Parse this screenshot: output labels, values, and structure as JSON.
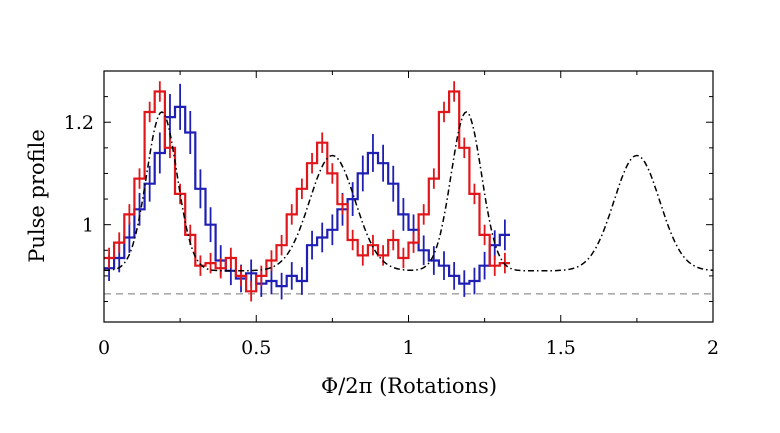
{
  "chart_data": {
    "type": "line",
    "title": "",
    "xlabel": "Φ/2π (Rotations)",
    "ylabel": "Pulse profile",
    "xlim": [
      0,
      2
    ],
    "ylim": [
      0.81,
      1.3
    ],
    "grid": false,
    "legend": "none",
    "x_ticks": [
      {
        "value": 0,
        "label": "0"
      },
      {
        "value": 0.5,
        "label": "0.5"
      },
      {
        "value": 1,
        "label": "1"
      },
      {
        "value": 1.5,
        "label": "1.5"
      },
      {
        "value": 2,
        "label": "2"
      }
    ],
    "y_ticks": [
      {
        "value": 1.0,
        "label": "1"
      },
      {
        "value": 1.2,
        "label": "1.2"
      }
    ],
    "reference_level": 0.865,
    "bin_width": 0.03333,
    "series": [
      {
        "color": "#1f1fb4",
        "style": "step-with-errorbars",
        "values": [
          0.915,
          0.935,
          0.975,
          1.03,
          1.08,
          1.14,
          1.21,
          1.23,
          1.18,
          1.07,
          1.0,
          0.93,
          0.91,
          0.895,
          0.905,
          0.885,
          0.89,
          0.88,
          0.9,
          0.89,
          0.96,
          0.975,
          0.99,
          1.03,
          1.05,
          1.1,
          1.14,
          1.12,
          1.08,
          1.02,
          0.99,
          0.95,
          0.93,
          0.92,
          0.9,
          0.885,
          0.89,
          0.92,
          0.96,
          0.98
        ],
        "errors": [
          0.025,
          0.028,
          0.03,
          0.032,
          0.035,
          0.04,
          0.045,
          0.045,
          0.042,
          0.038,
          0.034,
          0.03,
          0.028,
          0.027,
          0.027,
          0.026,
          0.026,
          0.026,
          0.027,
          0.027,
          0.028,
          0.029,
          0.03,
          0.032,
          0.033,
          0.035,
          0.037,
          0.036,
          0.035,
          0.032,
          0.03,
          0.029,
          0.028,
          0.028,
          0.027,
          0.026,
          0.026,
          0.027,
          0.029,
          0.03
        ]
      },
      {
        "color": "#e0161b",
        "style": "step-with-errorbars",
        "values": [
          0.935,
          0.965,
          1.02,
          1.09,
          1.22,
          1.26,
          1.15,
          1.06,
          0.98,
          0.92,
          0.925,
          0.915,
          0.935,
          0.9,
          0.87,
          0.9,
          0.93,
          0.96,
          1.02,
          1.07,
          1.12,
          1.16,
          1.1,
          1.04,
          0.97,
          0.94,
          0.96,
          0.94,
          0.97,
          0.935,
          0.965,
          1.02,
          1.09,
          1.22,
          1.26,
          1.15,
          1.06,
          0.98,
          0.92,
          0.925
        ]
      },
      {
        "color": "#000000",
        "style": "dash-dot-model",
        "model": {
          "baseline": 0.91,
          "peaks": [
            {
              "center": 0.19,
              "amplitude": 0.31,
              "width": 0.05
            },
            {
              "center": 0.75,
              "amplitude": 0.225,
              "width": 0.075
            }
          ],
          "period": 1
        }
      }
    ]
  }
}
